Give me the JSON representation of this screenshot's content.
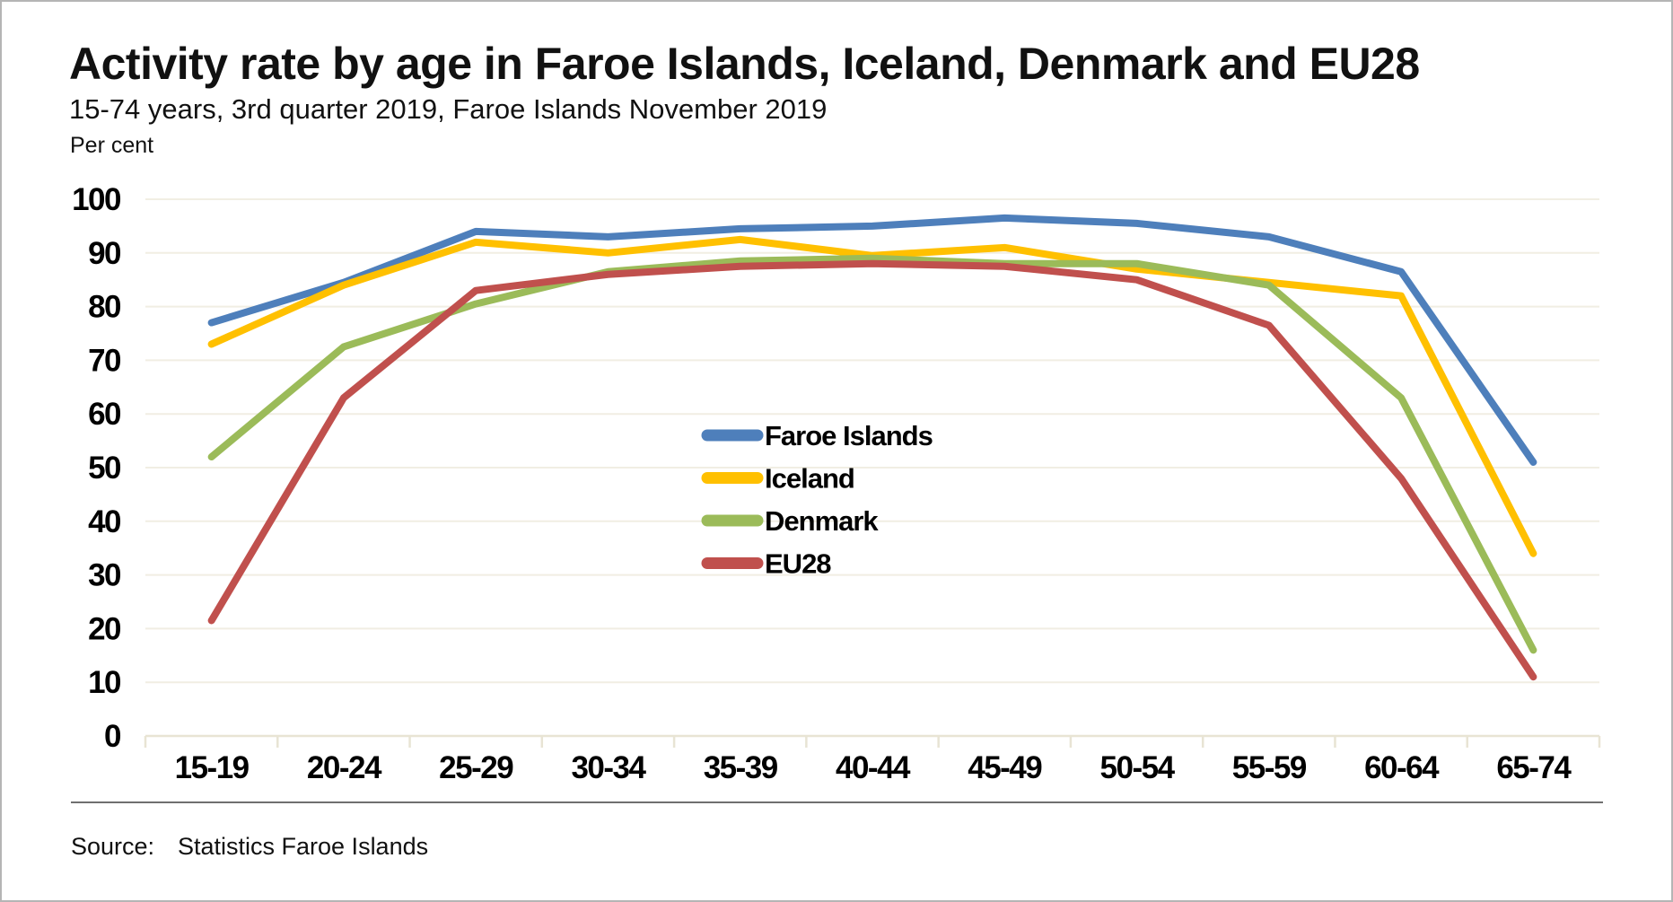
{
  "header": {
    "title": "Activity rate by age in Faroe Islands, Iceland, Denmark and EU28",
    "subtitle": "15-74 years, 3rd quarter 2019, Faroe Islands November 2019"
  },
  "source": {
    "label": "Source:",
    "value": "Statistics Faroe Islands"
  },
  "chart_data": {
    "type": "line",
    "title": "Activity rate by age in Faroe Islands, Iceland, Denmark and EU28",
    "subtitle": "15-74 years, 3rd quarter 2019, Faroe Islands November 2019",
    "ylabel": "Per cent",
    "xlabel": "",
    "categories": [
      "15-19",
      "20-24",
      "25-29",
      "30-34",
      "35-39",
      "40-44",
      "45-49",
      "50-54",
      "55-59",
      "60-64",
      "65-74"
    ],
    "series": [
      {
        "name": "Faroe Islands",
        "color": "#4E7FBB",
        "values": [
          77,
          84.5,
          94,
          93,
          94.5,
          95,
          96.5,
          95.5,
          93,
          86.5,
          51
        ]
      },
      {
        "name": "Iceland",
        "color": "#FFC000",
        "values": [
          73,
          84,
          92,
          90,
          92.5,
          89.5,
          91,
          87,
          84.5,
          82,
          34
        ]
      },
      {
        "name": "Denmark",
        "color": "#9BBB59",
        "values": [
          52,
          72.5,
          80.5,
          86.5,
          88.5,
          89,
          88,
          88,
          84,
          63,
          16
        ]
      },
      {
        "name": "EU28",
        "color": "#C0504D",
        "values": [
          21.5,
          63,
          83,
          86,
          87.5,
          88,
          87.5,
          85,
          76.5,
          48,
          11
        ]
      }
    ],
    "ylim": [
      0,
      100
    ],
    "ytick_step": 10,
    "yticks": [
      0,
      10,
      20,
      30,
      40,
      50,
      60,
      70,
      80,
      90,
      100
    ],
    "grid": true,
    "gridline_color": "#F1EEE3",
    "axisline_color": "#E8E4D4",
    "legend_position": "center-inside"
  }
}
